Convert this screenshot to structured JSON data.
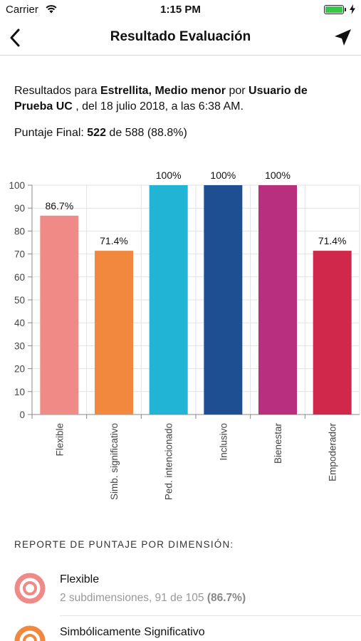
{
  "status": {
    "carrier": "Carrier",
    "time": "1:15 PM"
  },
  "nav": {
    "title": "Resultado Evaluación"
  },
  "info": {
    "prefix": "Resultados para ",
    "child": "Estrellita, Medio menor",
    "by": " por ",
    "user": "Usuario de Prueba UC",
    "suffix": " , del 18 julio 2018, a las 6:38 AM."
  },
  "score": {
    "label": "Puntaje Final: ",
    "value": "522",
    "of": " de 588 (88.8%)"
  },
  "chart_data": {
    "type": "bar",
    "categories": [
      "Flexible",
      "Simb. significativo",
      "Ped. intencionado",
      "Inclusivo",
      "Bienestar",
      "Empoderador"
    ],
    "values": [
      86.7,
      71.4,
      100,
      100,
      100,
      71.4
    ],
    "data_labels": [
      "86.7%",
      "71.4%",
      "100%",
      "100%",
      "100%",
      "71.4%"
    ],
    "colors": [
      "#f08a86",
      "#f2873e",
      "#22b4d4",
      "#1f4f93",
      "#b92f80",
      "#d0284b"
    ],
    "ylim": [
      0,
      100
    ],
    "yticks": [
      0,
      10,
      20,
      30,
      40,
      50,
      60,
      70,
      80,
      90,
      100
    ],
    "grid": true
  },
  "report": {
    "title": "REPORTE DE PUNTAJE POR DIMENSIÓN:",
    "items": [
      {
        "name": "Flexible",
        "sub": "2 subdimensiones, 91 de 105 ",
        "pct": "(86.7%)",
        "color": "#f08a86"
      },
      {
        "name": "Simbólicamente Significativo",
        "color": "#f2873e"
      }
    ]
  }
}
